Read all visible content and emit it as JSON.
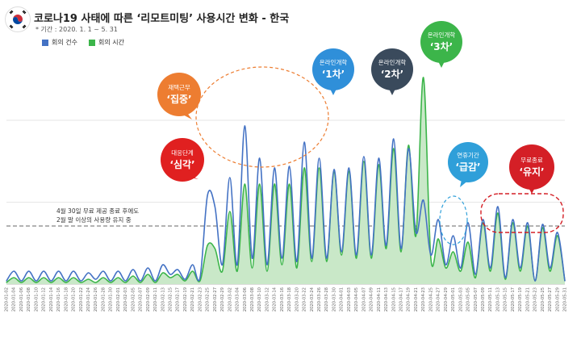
{
  "title": "코로나19 사태에 따른 ‘리모트미팅’ 사용시간 변화 - 한국",
  "subtitle": "* 기간 : 2020. 1. 1 ~ 5. 31",
  "legend": [
    {
      "name": "회의 건수",
      "color": "#4472c4"
    },
    {
      "name": "회의 시간",
      "color": "#3cb54a"
    }
  ],
  "note": {
    "line1": "4월 30일 무료 제공 종료 후에도",
    "line2": "2월 말 이상의 사용량 유지 중"
  },
  "callouts": [
    {
      "line1": "재택근무",
      "line2": "‘집중’",
      "color": "#ed7d31"
    },
    {
      "line1": "대응단계",
      "line2": "‘심각’",
      "color": "#e02020"
    },
    {
      "line1": "온라인개학",
      "line2": "‘1차’",
      "color": "#2f8fd9"
    },
    {
      "line1": "온라인개학",
      "line2": "‘2차’",
      "color": "#3a4a5c"
    },
    {
      "line1": "온라인개학",
      "line2": "‘3차’",
      "color": "#3cb54a"
    },
    {
      "line1": "연휴기간",
      "line2": "‘급감’",
      "color": "#2f9fd9"
    },
    {
      "line1": "무료종료",
      "line2": "‘유지’",
      "color": "#d41f26"
    }
  ],
  "chart_data": {
    "type": "area",
    "x": [
      "2020-01-02",
      "2020-01-04",
      "2020-01-06",
      "2020-01-08",
      "2020-01-10",
      "2020-01-12",
      "2020-01-14",
      "2020-01-16",
      "2020-01-18",
      "2020-01-20",
      "2020-01-22",
      "2020-01-24",
      "2020-01-26",
      "2020-01-28",
      "2020-01-30",
      "2020-02-01",
      "2020-02-03",
      "2020-02-05",
      "2020-02-07",
      "2020-02-09",
      "2020-02-11",
      "2020-02-13",
      "2020-02-15",
      "2020-02-17",
      "2020-02-19",
      "2020-02-21",
      "2020-02-23",
      "2020-02-25",
      "2020-02-27",
      "2020-02-29",
      "2020-03-02",
      "2020-03-04",
      "2020-03-06",
      "2020-03-08",
      "2020-03-10",
      "2020-03-12",
      "2020-03-14",
      "2020-03-16",
      "2020-03-18",
      "2020-03-20",
      "2020-03-22",
      "2020-03-24",
      "2020-03-26",
      "2020-03-28",
      "2020-03-30",
      "2020-04-01",
      "2020-04-03",
      "2020-04-05",
      "2020-04-07",
      "2020-04-09",
      "2020-04-11",
      "2020-04-13",
      "2020-04-15",
      "2020-04-17",
      "2020-04-19",
      "2020-04-21",
      "2020-04-23",
      "2020-04-25",
      "2020-04-27",
      "2020-04-29",
      "2020-05-01",
      "2020-05-03",
      "2020-05-05",
      "2020-05-07",
      "2020-05-09",
      "2020-05-11",
      "2020-05-13",
      "2020-05-15",
      "2020-05-17",
      "2020-05-19",
      "2020-05-21",
      "2020-05-23",
      "2020-05-25",
      "2020-05-27",
      "2020-05-29",
      "2020-05-31"
    ],
    "series": [
      {
        "name": "회의 건수",
        "color": "#4472c4",
        "values": [
          2,
          8,
          2,
          8,
          2,
          8,
          2,
          8,
          2,
          8,
          2,
          7,
          3,
          8,
          2,
          8,
          2,
          9,
          2,
          10,
          2,
          12,
          6,
          9,
          3,
          12,
          4,
          55,
          48,
          12,
          66,
          12,
          98,
          16,
          78,
          12,
          72,
          16,
          73,
          14,
          88,
          16,
          78,
          16,
          71,
          20,
          72,
          18,
          79,
          18,
          78,
          24,
          90,
          22,
          84,
          32,
          52,
          18,
          40,
          12,
          30,
          10,
          38,
          6,
          40,
          10,
          48,
          4,
          40,
          10,
          38,
          2,
          37,
          10,
          32,
          2
        ]
      },
      {
        "name": "회의 시간",
        "color": "#3cb54a",
        "values": [
          1,
          4,
          1,
          4,
          1,
          4,
          1,
          4,
          1,
          4,
          1,
          3,
          1,
          4,
          1,
          4,
          1,
          5,
          1,
          6,
          1,
          7,
          4,
          6,
          2,
          8,
          2,
          24,
          22,
          8,
          45,
          8,
          62,
          10,
          62,
          8,
          62,
          12,
          62,
          10,
          72,
          14,
          72,
          14,
          70,
          18,
          70,
          16,
          76,
          16,
          74,
          22,
          84,
          20,
          86,
          30,
          128,
          16,
          28,
          10,
          20,
          8,
          26,
          4,
          38,
          8,
          44,
          3,
          38,
          8,
          36,
          2,
          35,
          8,
          30,
          2
        ]
      }
    ],
    "ylim": [
      0,
      145
    ],
    "reference_line": 36,
    "grid": true
  }
}
